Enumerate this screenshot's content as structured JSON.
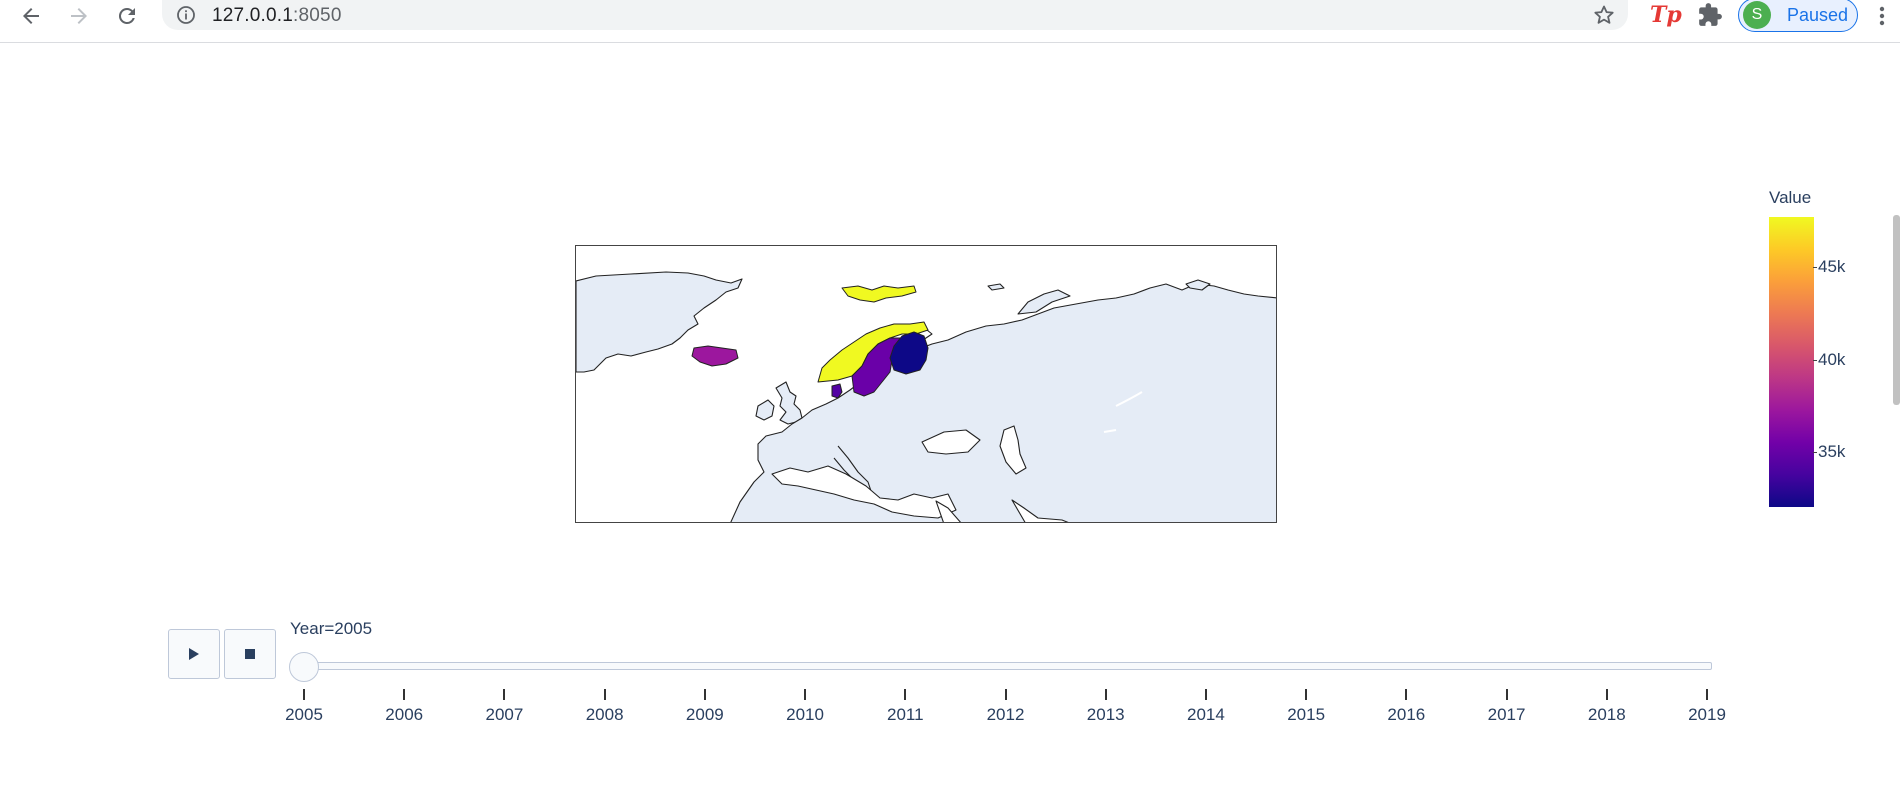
{
  "browser": {
    "url_host": "127.0.0.1",
    "url_port": ":8050",
    "profile_initial": "S",
    "profile_status": "Paused",
    "extension_label": "Tp",
    "icons": [
      "back-icon",
      "forward-icon",
      "reload-icon",
      "info-icon",
      "star-icon",
      "puzzle-icon",
      "more-icon"
    ]
  },
  "colorbar": {
    "title": "Value",
    "ticks": [
      "45k",
      "40k",
      "35k"
    ],
    "colorscale": [
      "#0d0887",
      "#46039f",
      "#7201a8",
      "#9c179e",
      "#bd3786",
      "#d8576b",
      "#ed7953",
      "#fb9f3a",
      "#fdca26",
      "#f0f921"
    ]
  },
  "map": {
    "land_color": "#e5ecf6",
    "border_color": "#222222",
    "regions": [
      {
        "name": "Norway",
        "color": "#f0f921"
      },
      {
        "name": "Svalbard",
        "color": "#f0f921"
      },
      {
        "name": "Sweden",
        "color": "#6a00a8"
      },
      {
        "name": "Finland",
        "color": "#0d0887"
      },
      {
        "name": "Iceland",
        "color": "#9c179e"
      },
      {
        "name": "Denmark",
        "color": "#5302a3"
      }
    ]
  },
  "animation": {
    "play_icon": "play-icon",
    "stop_icon": "stop-icon",
    "current_label": "Year=2005",
    "current_index": 0,
    "steps": [
      "2005",
      "2006",
      "2007",
      "2008",
      "2009",
      "2010",
      "2011",
      "2012",
      "2013",
      "2014",
      "2015",
      "2016",
      "2017",
      "2018",
      "2019"
    ]
  }
}
